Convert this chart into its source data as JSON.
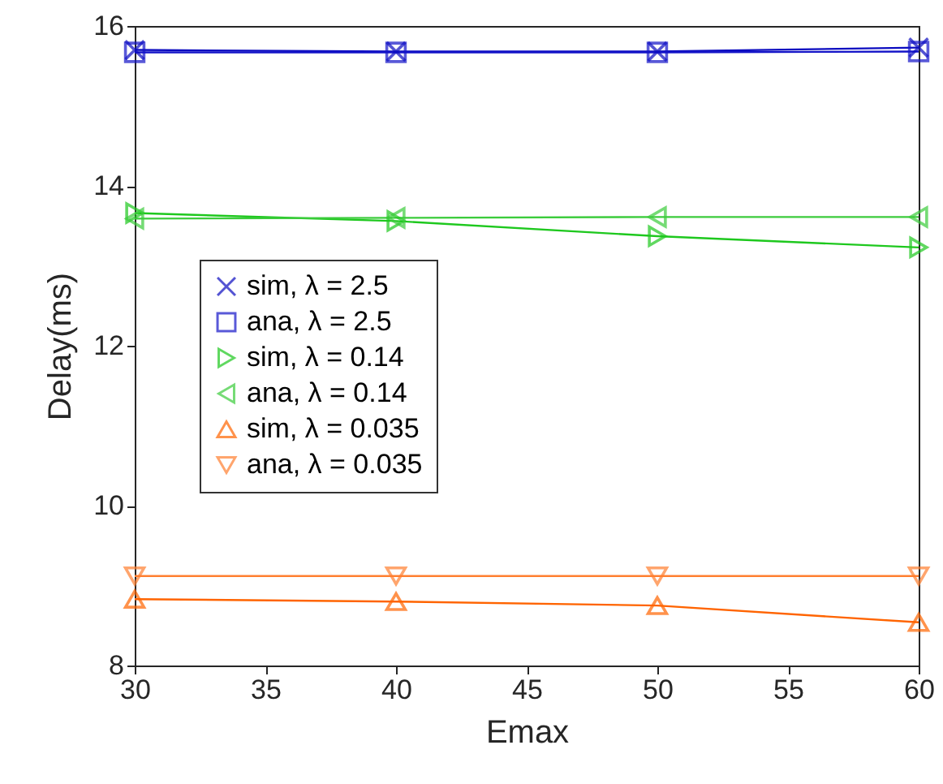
{
  "chart_data": {
    "type": "line",
    "xlabel": "Emax",
    "ylabel": "Delay(ms)",
    "x": [
      30,
      40,
      50,
      60
    ],
    "series": [
      {
        "name": "sim, λ = 2.5",
        "color": "#0b0bc0",
        "marker": "cross",
        "values": [
          15.7,
          15.68,
          15.68,
          15.73
        ]
      },
      {
        "name": "ana, λ = 2.5",
        "color": "#1414c8",
        "marker": "square",
        "values": [
          15.67,
          15.67,
          15.67,
          15.68
        ]
      },
      {
        "name": "sim, λ = 0.14",
        "color": "#1ec81e",
        "marker": "triangle-right",
        "values": [
          13.66,
          13.56,
          13.37,
          13.23
        ]
      },
      {
        "name": "ana, λ = 0.14",
        "color": "#3ccc3c",
        "marker": "triangle-left",
        "values": [
          13.59,
          13.6,
          13.61,
          13.61
        ]
      },
      {
        "name": "sim, λ = 0.035",
        "color": "#ff6400",
        "marker": "triangle-up",
        "values": [
          8.83,
          8.8,
          8.75,
          8.54
        ]
      },
      {
        "name": "ana, λ = 0.035",
        "color": "#ff7f30",
        "marker": "triangle-down",
        "values": [
          9.12,
          9.12,
          9.12,
          9.12
        ]
      }
    ],
    "xlim": [
      30,
      60
    ],
    "xticks": [
      30,
      35,
      40,
      45,
      50,
      55,
      60
    ],
    "ylim": [
      8,
      16
    ],
    "yticks": [
      8,
      10,
      12,
      14,
      16
    ],
    "grid": false,
    "legend": "left"
  }
}
